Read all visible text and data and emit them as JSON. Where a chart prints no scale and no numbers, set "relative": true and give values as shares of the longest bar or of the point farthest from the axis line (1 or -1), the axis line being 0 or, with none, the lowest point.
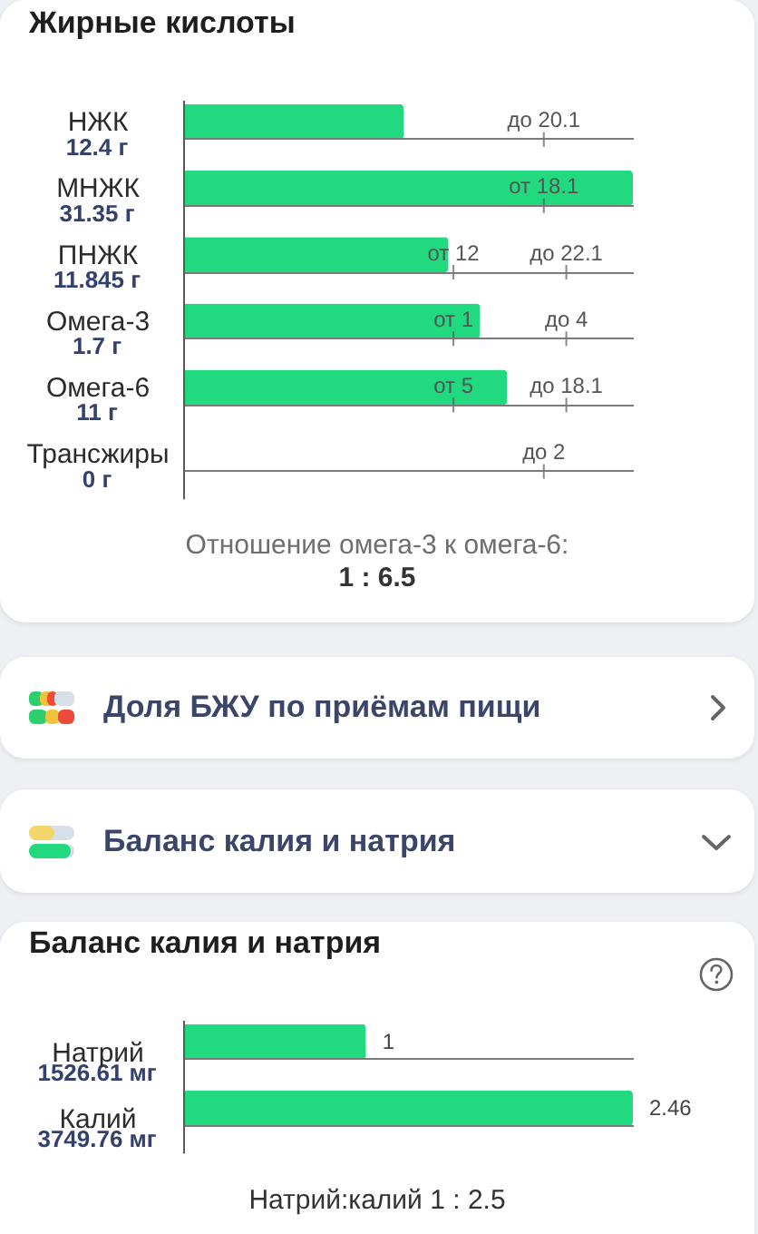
{
  "chart_data": [
    {
      "type": "bar",
      "title": "Жирные кислоты",
      "orientation": "horizontal",
      "relative": true,
      "categories": [
        "НЖК",
        "МНЖК",
        "ПНЖК",
        "Омега-3",
        "Омега-6",
        "Трансжиры"
      ],
      "values": [
        0.49,
        1,
        0.59,
        0.66,
        0.72,
        0
      ],
      "color": "#21d97f",
      "grid": "y",
      "annotations": [
        "12.4 г",
        "31.35 г",
        "11.845 г",
        "1.7 г",
        "11 г",
        "0 г",
        "до 20.1",
        "от 18.1",
        "от 12",
        "до 22.1",
        "от 1",
        "до 4",
        "от 5",
        "до 18.1",
        "до 2",
        "Отношение омега-3 к омега-6:",
        "1 : 6.5"
      ]
    },
    {
      "type": "other",
      "title": "Доля БЖУ по приёмам пищи"
    },
    {
      "type": "other",
      "title": "Баланс калия и натрия"
    },
    {
      "type": "bar",
      "title": "Баланс калия и натрия",
      "orientation": "horizontal",
      "categories": [
        "Натрий",
        "Калий"
      ],
      "values": [
        1,
        2.46
      ],
      "xlim": [
        0,
        2.46
      ],
      "data_labels": true,
      "color": "#21d97f",
      "grid": "y",
      "tick_labels": "y",
      "annotations": [
        "1526.61 мг",
        "3749.76 мг",
        "Натрий:калий 1 : 2.5"
      ]
    }
  ]
}
